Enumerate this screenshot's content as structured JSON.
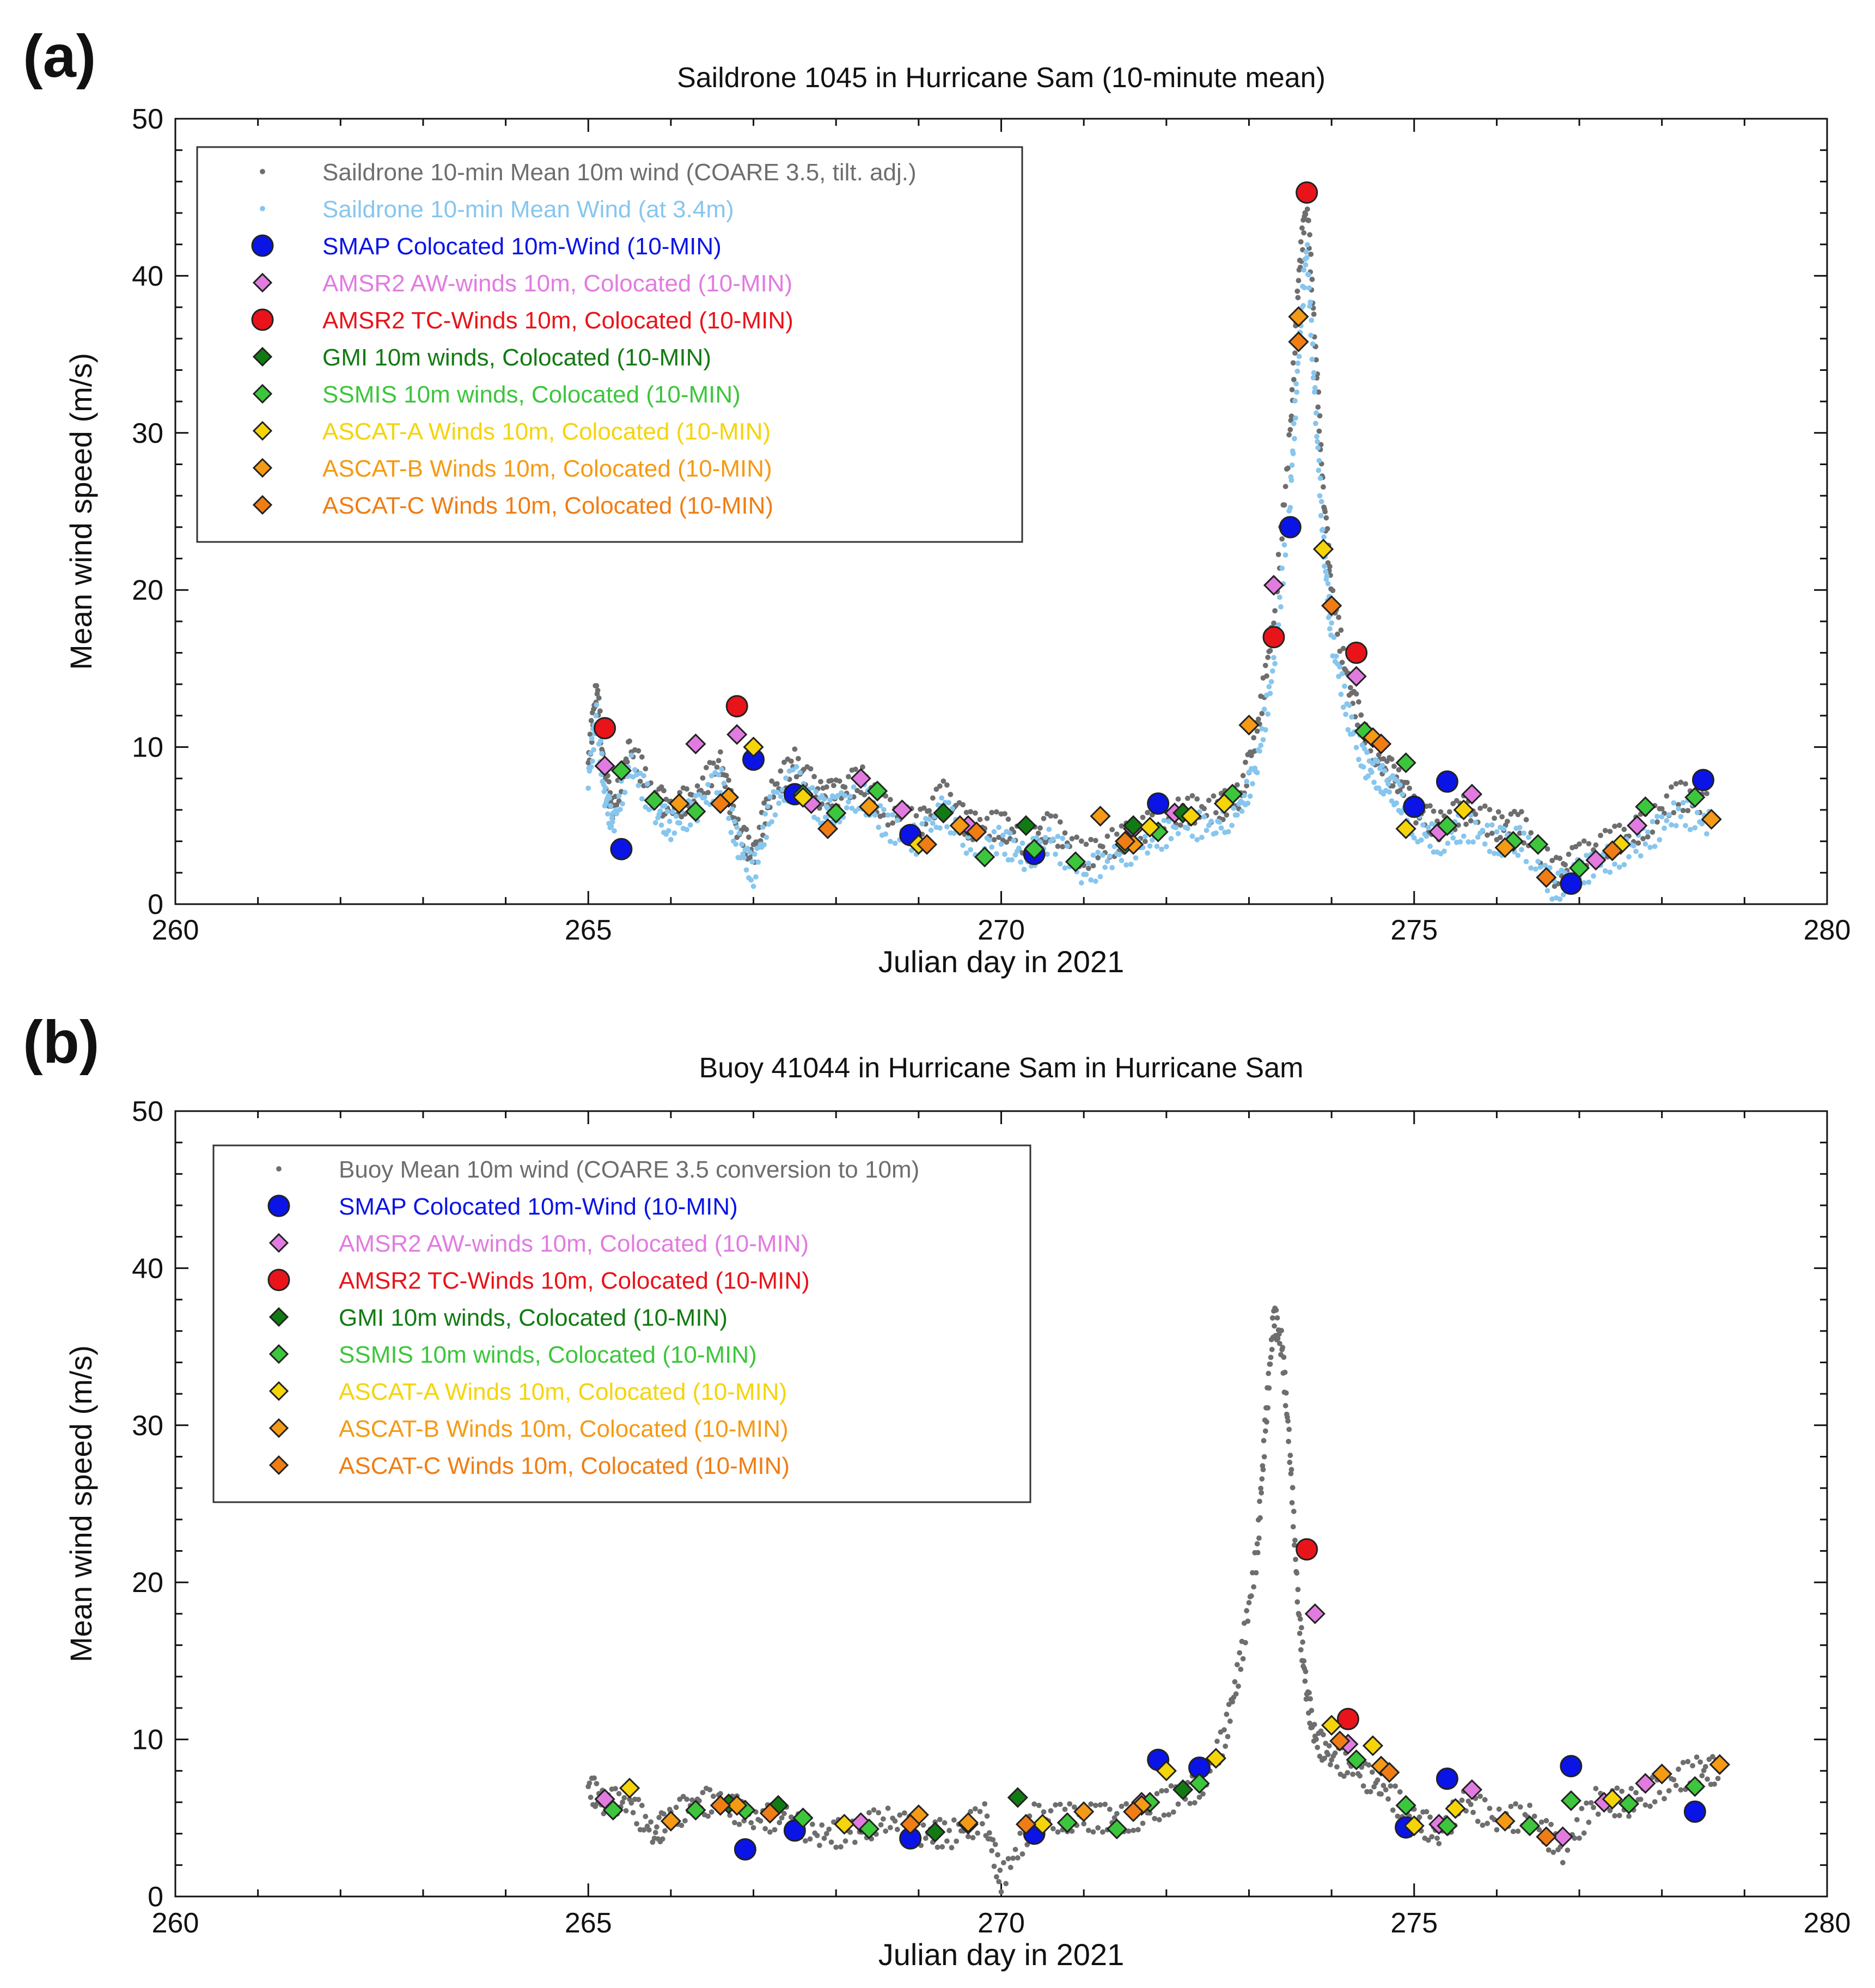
{
  "panels": {
    "a": {
      "letter": "(a)"
    },
    "b": {
      "letter": "(b)"
    }
  },
  "chart_data": [
    {
      "type": "scatter",
      "title": "Saildrone 1045 in Hurricane Sam (10-minute mean)",
      "xlabel": "Julian day in 2021",
      "ylabel": "Mean wind speed (m/s)",
      "xlim": [
        260,
        280
      ],
      "ylim": [
        0,
        50
      ],
      "xticks": [
        260,
        265,
        270,
        275,
        280
      ],
      "yticks": [
        0,
        10,
        20,
        30,
        40,
        50
      ],
      "legend_position": "top-left",
      "legend": [
        {
          "label": "Saildrone 10-min Mean 10m wind (COARE 3.5, tilt. adj.)",
          "marker": "dot",
          "color": "#6e6e6e"
        },
        {
          "label": "Saildrone 10-min Mean Wind (at 3.4m)",
          "marker": "dot",
          "color": "#87c6ee"
        },
        {
          "label": "SMAP Colocated 10m-Wind (10-MIN)",
          "marker": "circle",
          "color": "#0a14e6"
        },
        {
          "label": "AMSR2 AW-winds 10m, Colocated (10-MIN)",
          "marker": "diamond",
          "color": "#e27be0"
        },
        {
          "label": "AMSR2 TC-Winds 10m, Colocated (10-MIN)",
          "marker": "circle",
          "color": "#e8141a"
        },
        {
          "label": "GMI 10m winds, Colocated (10-MIN)",
          "marker": "diamond",
          "color": "#127a12"
        },
        {
          "label": "SSMIS 10m winds, Colocated (10-MIN)",
          "marker": "diamond",
          "color": "#3cc63c"
        },
        {
          "label": "ASCAT-A Winds 10m, Colocated (10-MIN)",
          "marker": "diamond",
          "color": "#f5d40a"
        },
        {
          "label": "ASCAT-B Winds 10m, Colocated (10-MIN)",
          "marker": "diamond",
          "color": "#f59a14"
        },
        {
          "label": "ASCAT-C Winds 10m, Colocated (10-MIN)",
          "marker": "diamond",
          "color": "#f07d14"
        }
      ],
      "series": [
        {
          "name": "Saildrone 10-min Mean 10m wind (COARE 3.5, tilt. adj.)",
          "role": "background-dots",
          "color": "#6e6e6e",
          "x": [
            265.0,
            265.1,
            265.2,
            265.3,
            265.5,
            265.8,
            266.0,
            266.3,
            266.6,
            266.8,
            267.0,
            267.2,
            267.5,
            267.8,
            268.0,
            268.3,
            268.6,
            269.0,
            269.3,
            269.6,
            270.0,
            270.3,
            270.6,
            271.0,
            271.4,
            271.8,
            272.2,
            272.6,
            272.9,
            273.1,
            273.3,
            273.5,
            273.6,
            273.7,
            273.8,
            273.9,
            274.0,
            274.2,
            274.4,
            274.6,
            274.8,
            275.0,
            275.3,
            275.6,
            276.0,
            276.3,
            276.7,
            277.0,
            277.4,
            277.8,
            278.2,
            278.6
          ],
          "y": [
            9,
            14,
            8,
            6,
            10,
            7,
            6,
            7,
            9,
            5,
            3,
            7,
            9,
            7,
            7,
            8,
            6,
            5,
            7,
            5,
            5,
            4,
            5,
            3,
            4,
            5,
            6,
            6,
            7,
            11,
            18,
            30,
            40,
            45,
            36,
            26,
            20,
            14,
            11,
            9,
            8,
            6,
            5,
            6,
            5,
            5,
            2,
            3,
            4,
            5,
            7,
            6
          ]
        },
        {
          "name": "Saildrone 10-min Mean Wind (at 3.4m)",
          "role": "background-dots",
          "color": "#87c6ee",
          "x": [
            265.0,
            265.1,
            265.2,
            265.3,
            265.5,
            265.8,
            266.0,
            266.3,
            266.6,
            266.8,
            267.0,
            267.2,
            267.5,
            267.8,
            268.0,
            268.3,
            268.6,
            269.0,
            269.3,
            269.6,
            270.0,
            270.3,
            270.6,
            271.0,
            271.4,
            271.8,
            272.2,
            272.6,
            272.9,
            273.1,
            273.3,
            273.5,
            273.6,
            273.7,
            273.8,
            273.9,
            274.0,
            274.2,
            274.4,
            274.6,
            274.8,
            275.0,
            275.3,
            275.6,
            276.0,
            276.3,
            276.7,
            277.0,
            277.4,
            277.8,
            278.2,
            278.6
          ],
          "y": [
            8,
            12,
            7,
            5,
            9,
            6,
            5,
            6,
            8,
            4,
            2,
            6,
            8,
            6,
            6,
            7,
            5,
            4,
            6,
            4,
            4,
            3,
            4,
            2,
            3,
            4,
            5,
            5,
            6,
            9,
            15,
            26,
            35,
            42,
            32,
            23,
            17,
            12,
            9,
            8,
            7,
            5,
            4,
            5,
            4,
            4,
            1,
            2,
            3,
            4,
            6,
            5
          ]
        },
        {
          "name": "SMAP Colocated 10m-Wind (10-MIN)",
          "x": [
            265.4,
            267.0,
            267.5,
            268.9,
            270.4,
            271.9,
            273.5,
            275.0,
            275.4,
            276.9,
            278.5
          ],
          "y": [
            3.5,
            9.2,
            7.0,
            4.4,
            3.2,
            6.4,
            24.0,
            6.2,
            7.8,
            1.3,
            7.9
          ]
        },
        {
          "name": "AMSR2 AW-winds 10m, Colocated (10-MIN)",
          "x": [
            265.2,
            266.3,
            266.8,
            267.7,
            268.3,
            268.8,
            269.6,
            271.6,
            272.1,
            273.3,
            274.3,
            275.3,
            275.7,
            277.2,
            277.7
          ],
          "y": [
            8.8,
            10.2,
            10.8,
            6.4,
            8.0,
            6.0,
            5.0,
            4.8,
            5.8,
            20.3,
            14.5,
            4.6,
            7.0,
            2.8,
            5.0
          ]
        },
        {
          "name": "AMSR2 TC-Winds 10m, Colocated (10-MIN)",
          "x": [
            265.2,
            266.8,
            273.3,
            273.7,
            274.3
          ],
          "y": [
            11.2,
            12.6,
            17.0,
            45.3,
            16.0
          ]
        },
        {
          "name": "GMI 10m winds, Colocated (10-MIN)",
          "x": [
            269.3,
            270.3,
            271.6,
            272.2
          ],
          "y": [
            5.8,
            5.0,
            5.0,
            5.8
          ]
        },
        {
          "name": "SSMIS 10m winds, Colocated (10-MIN)",
          "x": [
            265.4,
            265.8,
            266.3,
            267.6,
            268.0,
            268.5,
            269.8,
            270.4,
            270.9,
            271.5,
            271.9,
            272.3,
            272.8,
            274.4,
            274.9,
            275.4,
            276.2,
            276.5,
            277.0,
            277.8,
            278.4
          ],
          "y": [
            8.5,
            6.6,
            5.9,
            7.0,
            5.8,
            7.2,
            3.0,
            3.5,
            2.7,
            3.8,
            4.6,
            5.6,
            7.0,
            11.0,
            9.0,
            5.0,
            4.0,
            3.8,
            2.3,
            6.2,
            6.8
          ]
        },
        {
          "name": "ASCAT-A Winds 10m, Colocated (10-MIN)",
          "x": [
            267.0,
            267.6,
            269.0,
            271.8,
            272.3,
            272.7,
            273.9,
            274.9,
            275.6,
            277.5
          ],
          "y": [
            10.0,
            6.8,
            3.8,
            4.9,
            5.6,
            6.4,
            22.6,
            4.8,
            6.0,
            3.8
          ]
        },
        {
          "name": "ASCAT-B Winds 10m, Colocated (10-MIN)",
          "x": [
            266.1,
            266.7,
            268.4,
            269.5,
            271.2,
            271.6,
            273.0,
            273.6,
            274.5,
            276.1,
            278.6
          ],
          "y": [
            6.4,
            6.8,
            6.2,
            5.0,
            5.6,
            3.8,
            11.4,
            37.4,
            10.6,
            3.6,
            5.4
          ]
        },
        {
          "name": "ASCAT-C Winds 10m, Colocated (10-MIN)",
          "x": [
            266.6,
            267.9,
            269.1,
            269.7,
            271.5,
            273.6,
            274.0,
            274.6,
            276.6,
            277.4
          ],
          "y": [
            6.4,
            4.8,
            3.8,
            4.6,
            4.0,
            35.8,
            19.0,
            10.2,
            1.7,
            3.4
          ]
        }
      ]
    },
    {
      "type": "scatter",
      "title": "Buoy 41044 in Hurricane Sam in Hurricane Sam",
      "xlabel": "Julian day in 2021",
      "ylabel": "Mean wind speed (m/s)",
      "xlim": [
        260,
        280
      ],
      "ylim": [
        0,
        50
      ],
      "xticks": [
        260,
        265,
        270,
        275,
        280
      ],
      "yticks": [
        0,
        10,
        20,
        30,
        40,
        50
      ],
      "legend_position": "top-left",
      "legend": [
        {
          "label": "Buoy Mean 10m wind (COARE 3.5 conversion to 10m)",
          "marker": "dot",
          "color": "#6e6e6e"
        },
        {
          "label": "SMAP Colocated 10m-Wind (10-MIN)",
          "marker": "circle",
          "color": "#0a14e6"
        },
        {
          "label": "AMSR2 AW-winds 10m, Colocated (10-MIN)",
          "marker": "diamond",
          "color": "#e27be0"
        },
        {
          "label": "AMSR2 TC-Winds 10m, Colocated (10-MIN)",
          "marker": "circle",
          "color": "#e8141a"
        },
        {
          "label": "GMI 10m winds, Colocated (10-MIN)",
          "marker": "diamond",
          "color": "#127a12"
        },
        {
          "label": "SSMIS 10m winds, Colocated (10-MIN)",
          "marker": "diamond",
          "color": "#3cc63c"
        },
        {
          "label": "ASCAT-A Winds 10m, Colocated (10-MIN)",
          "marker": "diamond",
          "color": "#f5d40a"
        },
        {
          "label": "ASCAT-B Winds 10m, Colocated (10-MIN)",
          "marker": "diamond",
          "color": "#f59a14"
        },
        {
          "label": "ASCAT-C Winds 10m, Colocated (10-MIN)",
          "marker": "diamond",
          "color": "#f07d14"
        }
      ],
      "series": [
        {
          "name": "Buoy Mean 10m wind (COARE 3.5 conversion to 10m)",
          "role": "background-dots",
          "color": "#6e6e6e",
          "x": [
            265.0,
            265.2,
            265.5,
            265.8,
            266.0,
            266.3,
            266.6,
            267.0,
            267.4,
            267.8,
            268.2,
            268.6,
            269.0,
            269.4,
            269.8,
            270.0,
            270.4,
            270.8,
            271.2,
            271.6,
            272.0,
            272.4,
            272.7,
            272.9,
            273.1,
            273.2,
            273.3,
            273.4,
            273.5,
            273.6,
            273.7,
            273.8,
            274.0,
            274.3,
            274.6,
            275.0,
            275.3,
            275.6,
            276.0,
            276.4,
            276.8,
            277.2,
            277.6,
            278.0,
            278.4,
            278.7
          ],
          "y": [
            7,
            6,
            6,
            4,
            5,
            6,
            6,
            5,
            5,
            4,
            4,
            5,
            4,
            4,
            5,
            1,
            5,
            5,
            5,
            5,
            6,
            7,
            10,
            15,
            22,
            30,
            37,
            35,
            28,
            18,
            13,
            10,
            9,
            8,
            7,
            5,
            4,
            6,
            5,
            5,
            3,
            6,
            6,
            7,
            8,
            8
          ]
        },
        {
          "name": "SMAP Colocated 10m-Wind (10-MIN)",
          "x": [
            266.9,
            267.5,
            268.9,
            270.4,
            271.9,
            272.4,
            274.9,
            275.4,
            276.9,
            278.4
          ],
          "y": [
            3.0,
            4.2,
            3.7,
            4.0,
            8.7,
            8.2,
            4.4,
            7.5,
            8.3,
            5.4
          ]
        },
        {
          "name": "AMSR2 AW-winds 10m, Colocated (10-MIN)",
          "x": [
            265.2,
            268.3,
            271.7,
            273.8,
            274.2,
            275.3,
            275.7,
            276.8,
            277.3,
            277.8
          ],
          "y": [
            6.2,
            4.7,
            6.0,
            18.0,
            9.7,
            4.6,
            6.8,
            3.8,
            6.0,
            7.2
          ]
        },
        {
          "name": "AMSR2 TC-Winds 10m, Colocated (10-MIN)",
          "x": [
            273.7,
            274.2
          ],
          "y": [
            22.1,
            11.3
          ]
        },
        {
          "name": "GMI 10m winds, Colocated (10-MIN)",
          "x": [
            266.7,
            267.3,
            269.2,
            270.2,
            272.2
          ],
          "y": [
            5.9,
            5.8,
            4.1,
            6.3,
            6.8
          ]
        },
        {
          "name": "SSMIS 10m winds, Colocated (10-MIN)",
          "x": [
            265.3,
            266.3,
            266.9,
            267.6,
            268.4,
            269.6,
            270.8,
            271.4,
            271.8,
            272.4,
            274.3,
            274.9,
            275.4,
            276.4,
            276.9,
            277.6,
            278.4
          ],
          "y": [
            5.5,
            5.5,
            5.5,
            5.0,
            4.3,
            4.6,
            4.7,
            4.3,
            6.0,
            7.2,
            8.7,
            5.8,
            4.5,
            4.5,
            6.1,
            5.9,
            7.0
          ]
        },
        {
          "name": "ASCAT-A Winds 10m, Colocated (10-MIN)",
          "x": [
            265.5,
            268.1,
            270.5,
            272.0,
            272.6,
            274.0,
            274.5,
            275.0,
            275.5,
            277.4
          ],
          "y": [
            6.9,
            4.6,
            4.6,
            8.0,
            8.8,
            10.9,
            9.6,
            4.5,
            5.6,
            6.2
          ]
        },
        {
          "name": "ASCAT-B Winds 10m, Colocated (10-MIN)",
          "x": [
            266.0,
            266.8,
            269.0,
            269.6,
            271.0,
            271.7,
            274.6,
            276.1,
            278.0,
            278.7
          ],
          "y": [
            4.8,
            5.8,
            5.2,
            4.7,
            5.4,
            5.8,
            8.3,
            4.8,
            7.8,
            8.4
          ]
        },
        {
          "name": "ASCAT-C Winds 10m, Colocated (10-MIN)",
          "x": [
            266.6,
            267.2,
            268.9,
            270.3,
            271.6,
            274.1,
            274.7,
            276.6
          ],
          "y": [
            5.8,
            5.3,
            4.6,
            4.6,
            5.4,
            9.9,
            7.9,
            3.8
          ]
        }
      ]
    }
  ]
}
